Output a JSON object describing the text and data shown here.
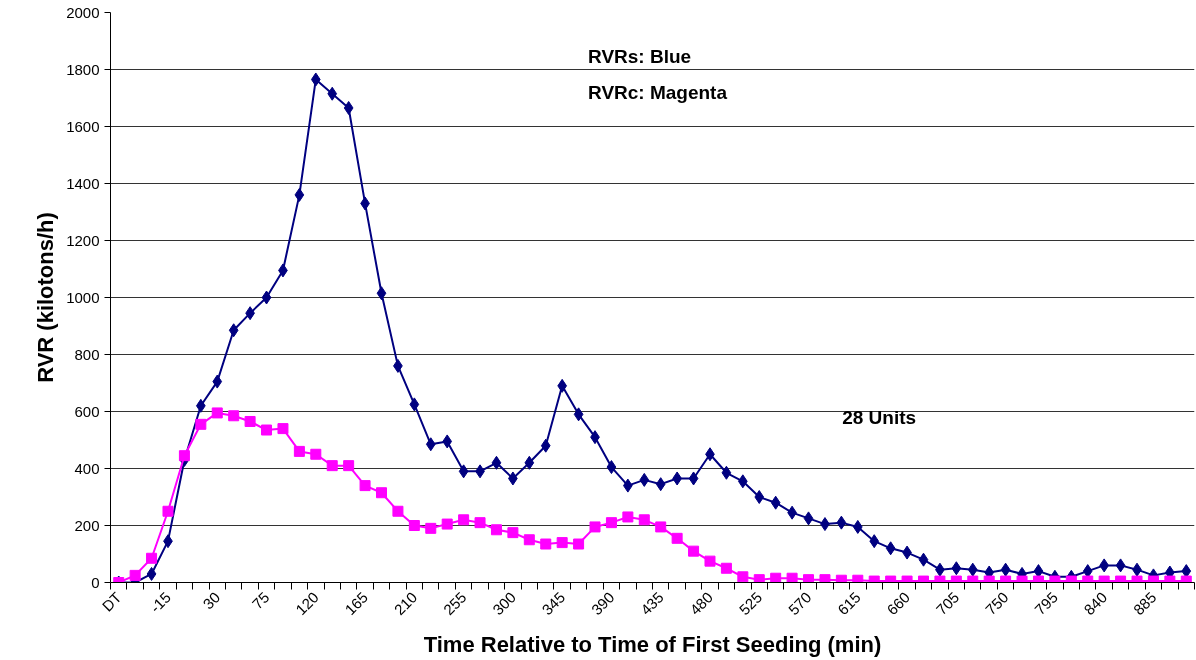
{
  "chart_data": {
    "type": "line",
    "xlabel": "Time Relative to Time of First Seeding (min)",
    "ylabel": "RVR (kilotons/h)",
    "categories": [
      "DT",
      null,
      null,
      "-15",
      null,
      null,
      "30",
      null,
      null,
      "75",
      null,
      null,
      "120",
      null,
      null,
      "165",
      null,
      null,
      "210",
      null,
      null,
      "255",
      null,
      null,
      "300",
      null,
      null,
      "345",
      null,
      null,
      "390",
      null,
      null,
      "435",
      null,
      null,
      "480",
      null,
      null,
      "525",
      null,
      null,
      "570",
      null,
      null,
      "615",
      null,
      null,
      "660",
      null,
      null,
      "705",
      null,
      null,
      "750",
      null,
      null,
      "795",
      null,
      null,
      "840",
      null,
      null,
      "885",
      null,
      null
    ],
    "series": [
      {
        "color": "#000080",
        "marker": "diamond",
        "values": [
          0,
          0,
          30,
          145,
          430,
          620,
          705,
          885,
          945,
          1000,
          1095,
          1360,
          1765,
          1715,
          1665,
          1330,
          1015,
          760,
          625,
          485,
          495,
          390,
          390,
          420,
          365,
          420,
          480,
          690,
          590,
          510,
          405,
          340,
          360,
          345,
          365,
          365,
          450,
          385,
          355,
          300,
          280,
          245,
          225,
          205,
          210,
          195,
          145,
          120,
          105,
          80,
          45,
          50,
          45,
          35,
          45,
          30,
          40,
          20,
          20,
          40,
          60,
          60,
          45,
          25,
          35,
          40
        ]
      },
      {
        "color": "#ff00ff",
        "marker": "square",
        "values": [
          0,
          25,
          85,
          250,
          445,
          555,
          595,
          585,
          565,
          535,
          540,
          460,
          450,
          410,
          410,
          340,
          315,
          250,
          200,
          190,
          205,
          220,
          210,
          185,
          175,
          150,
          135,
          140,
          135,
          195,
          210,
          230,
          220,
          195,
          155,
          110,
          75,
          50,
          20,
          10,
          15,
          15,
          10,
          10,
          8,
          8,
          5,
          5,
          5,
          5,
          5,
          5,
          5,
          5,
          5,
          5,
          5,
          5,
          5,
          5,
          5,
          5,
          5,
          5,
          5,
          5
        ]
      }
    ],
    "ylim": [
      0,
      2000
    ],
    "yticks": [
      0,
      200,
      400,
      600,
      800,
      1000,
      1200,
      1400,
      1600,
      1800,
      2000
    ],
    "grid": "y",
    "annotations": [
      "RVRs: Blue",
      "RVRc: Magenta",
      "28 Units"
    ]
  }
}
